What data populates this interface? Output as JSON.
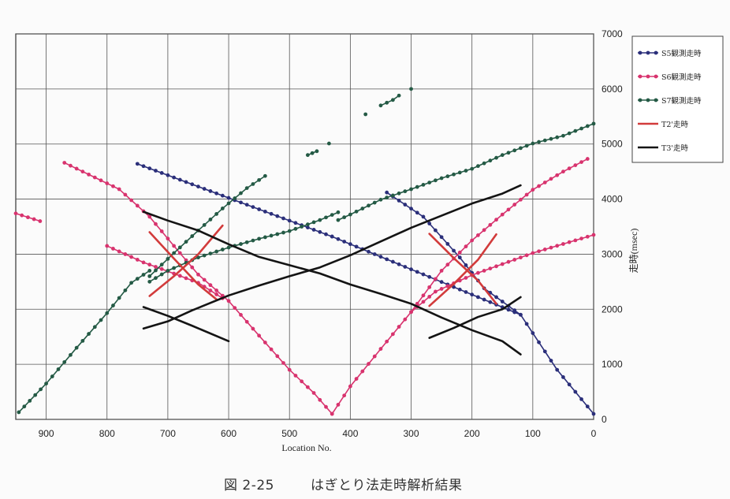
{
  "caption": {
    "figure_no": "図 2-25",
    "title": "はぎとり法走時解析結果"
  },
  "chart_data": {
    "type": "line",
    "xlabel": "Location No.",
    "ylabel": "走時(msec)",
    "xlim": [
      950,
      0
    ],
    "ylim": [
      0,
      7000
    ],
    "x_ticks": [
      900,
      800,
      700,
      600,
      500,
      400,
      300,
      200,
      100,
      0
    ],
    "y_ticks": [
      0,
      1000,
      2000,
      3000,
      4000,
      5000,
      6000,
      7000
    ],
    "grid": true,
    "legend_position": "right",
    "colors": {
      "S5": "#2b2f7a",
      "S6": "#d8336e",
      "S7": "#245a45",
      "T2": "#d23b3b",
      "T3": "#141414"
    },
    "series": [
      {
        "name": "S5観測走時",
        "key": "S5",
        "style": "dots",
        "segments": [
          [
            [
              750,
              4640
            ],
            [
              430,
              3320
            ]
          ],
          [
            [
              340,
              4120
            ],
            [
              280,
              3680
            ],
            [
              220,
              2940
            ],
            [
              180,
              2380
            ],
            [
              120,
              1900
            ],
            [
              60,
              900
            ],
            [
              0,
              100
            ]
          ],
          [
            [
              430,
              3320
            ],
            [
              120,
              1900
            ]
          ]
        ]
      },
      {
        "name": "S6観測走時",
        "key": "S6",
        "style": "dots",
        "segments": [
          [
            [
              950,
              3740
            ],
            [
              910,
              3600
            ]
          ],
          [
            [
              870,
              4660
            ],
            [
              780,
              4180
            ],
            [
              730,
              3680
            ],
            [
              690,
              3150
            ],
            [
              650,
              2630
            ],
            [
              600,
              2150
            ],
            [
              550,
              1520
            ],
            [
              500,
              900
            ],
            [
              460,
              480
            ],
            [
              430,
              100
            ]
          ],
          [
            [
              800,
              3150
            ],
            [
              740,
              2850
            ],
            [
              700,
              2690
            ],
            [
              650,
              2480
            ],
            [
              610,
              2200
            ]
          ],
          [
            [
              430,
              100
            ],
            [
              400,
              600
            ],
            [
              350,
              1280
            ],
            [
              300,
              1950
            ],
            [
              250,
              2700
            ],
            [
              200,
              3250
            ],
            [
              150,
              3720
            ],
            [
              100,
              4170
            ],
            [
              50,
              4500
            ],
            [
              10,
              4730
            ]
          ],
          [
            [
              300,
              1950
            ],
            [
              260,
              2320
            ],
            [
              200,
              2620
            ],
            [
              100,
              3020
            ],
            [
              0,
              3350
            ]
          ]
        ]
      },
      {
        "name": "S7観測走時",
        "key": "S7",
        "style": "dots",
        "segments": [
          [
            [
              945,
              130
            ],
            [
              900,
              650
            ],
            [
              850,
              1300
            ],
            [
              800,
              1930
            ],
            [
              760,
              2480
            ],
            [
              730,
              2700
            ]
          ],
          [
            [
              730,
              2500
            ],
            [
              700,
              2700
            ],
            [
              650,
              2940
            ],
            [
              600,
              3120
            ],
            [
              550,
              3280
            ],
            [
              500,
              3420
            ],
            [
              450,
              3620
            ],
            [
              420,
              3760
            ]
          ],
          [
            [
              730,
              2600
            ],
            [
              690,
              3020
            ],
            [
              650,
              3430
            ],
            [
              610,
              3830
            ],
            [
              570,
              4200
            ],
            [
              540,
              4420
            ]
          ],
          [
            [
              420,
              3620
            ],
            [
              400,
              3720
            ],
            [
              350,
              3990
            ],
            [
              300,
              4180
            ],
            [
              250,
              4380
            ],
            [
              200,
              4550
            ],
            [
              150,
              4800
            ],
            [
              100,
              5010
            ],
            [
              50,
              5150
            ],
            [
              0,
              5370
            ]
          ],
          [
            [
              470,
              4800
            ],
            [
              455,
              4870
            ]
          ],
          [
            [
              435,
              5010
            ]
          ],
          [
            [
              375,
              5540
            ]
          ],
          [
            [
              350,
              5700
            ],
            [
              330,
              5800
            ],
            [
              320,
              5880
            ]
          ],
          [
            [
              300,
              6000
            ]
          ]
        ]
      },
      {
        "name": "T2'走時",
        "key": "T2",
        "style": "line",
        "segments": [
          [
            [
              730,
              3400
            ],
            [
              690,
              2920
            ],
            [
              650,
              2450
            ],
            [
              620,
              2180
            ]
          ],
          [
            [
              730,
              2240
            ],
            [
              690,
              2600
            ],
            [
              650,
              3000
            ],
            [
              610,
              3520
            ]
          ],
          [
            [
              270,
              3370
            ],
            [
              230,
              2930
            ],
            [
              190,
              2520
            ],
            [
              160,
              2100
            ]
          ],
          [
            [
              270,
              2060
            ],
            [
              230,
              2460
            ],
            [
              190,
              2900
            ],
            [
              160,
              3360
            ]
          ]
        ]
      },
      {
        "name": "T3'走時",
        "key": "T3",
        "style": "line",
        "segments": [
          [
            [
              740,
              3770
            ],
            [
              700,
              3610
            ],
            [
              650,
              3430
            ],
            [
              600,
              3180
            ],
            [
              550,
              2950
            ],
            [
              500,
              2800
            ],
            [
              450,
              2650
            ],
            [
              400,
              2450
            ],
            [
              350,
              2280
            ],
            [
              300,
              2100
            ],
            [
              250,
              1850
            ],
            [
              200,
              1620
            ],
            [
              150,
              1420
            ],
            [
              120,
              1180
            ]
          ],
          [
            [
              740,
              1650
            ],
            [
              700,
              1780
            ],
            [
              660,
              1980
            ],
            [
              600,
              2250
            ],
            [
              550,
              2430
            ],
            [
              500,
              2600
            ],
            [
              450,
              2760
            ],
            [
              400,
              2980
            ],
            [
              350,
              3230
            ],
            [
              300,
              3480
            ],
            [
              250,
              3700
            ],
            [
              200,
              3920
            ],
            [
              150,
              4100
            ],
            [
              120,
              4250
            ]
          ],
          [
            [
              740,
              2040
            ],
            [
              700,
              1880
            ],
            [
              660,
              1700
            ],
            [
              600,
              1420
            ]
          ],
          [
            [
              270,
              1480
            ],
            [
              230,
              1660
            ],
            [
              190,
              1860
            ],
            [
              150,
              2000
            ],
            [
              120,
              2220
            ]
          ]
        ]
      }
    ]
  }
}
